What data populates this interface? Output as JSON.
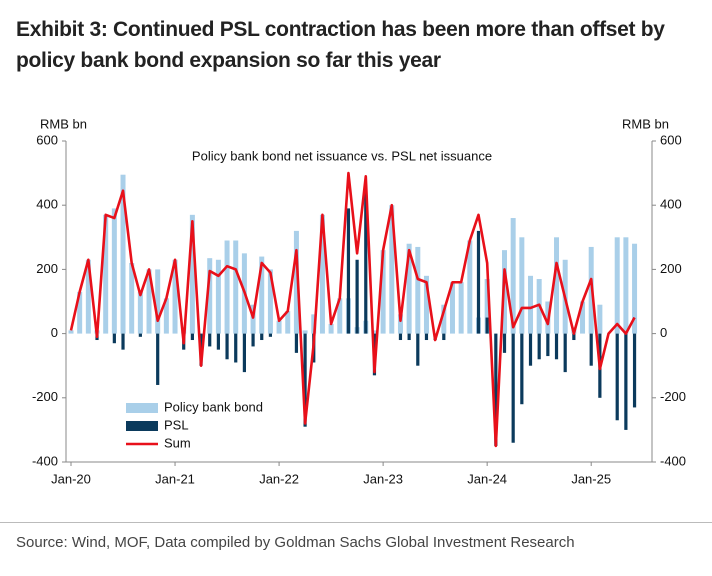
{
  "chart_data": {
    "type": "bar_line",
    "title": "Exhibit 3: Continued PSL contraction has been more than offset by policy bank bond expansion so far this year",
    "subtitle": "Policy bank bond net issuance vs. PSL net issuance",
    "y_label": "RMB bn",
    "y2_label": "RMB bn",
    "source": "Source: Wind, MOF, Data compiled by Goldman Sachs Global Investment Research",
    "categories": [
      "Jan-20",
      null,
      null,
      null,
      null,
      null,
      null,
      null,
      null,
      null,
      null,
      null,
      "Jan-21",
      null,
      null,
      null,
      null,
      null,
      null,
      null,
      null,
      null,
      null,
      null,
      "Jan-22",
      null,
      null,
      null,
      null,
      null,
      null,
      null,
      null,
      null,
      null,
      null,
      "Jan-23",
      null,
      null,
      null,
      null,
      null,
      null,
      null,
      null,
      null,
      null,
      null,
      "Jan-24",
      null,
      null,
      null,
      null,
      null,
      null,
      null,
      null,
      null,
      null,
      null,
      "Jan-25",
      null,
      null,
      null,
      null,
      null
    ],
    "series": [
      {
        "name": "Policy bank bond",
        "kind": "bar",
        "color": "#a9cfe9",
        "values": [
          10,
          130,
          230,
          10,
          370,
          390,
          495,
          220,
          130,
          200,
          200,
          110,
          230,
          20,
          370,
          0,
          235,
          230,
          290,
          290,
          250,
          90,
          240,
          200,
          40,
          70,
          320,
          10,
          60,
          370,
          30,
          110,
          110,
          20,
          40,
          10,
          260,
          400,
          60,
          280,
          270,
          180,
          0,
          90,
          160,
          160,
          290,
          50,
          170,
          0,
          260,
          360,
          300,
          180,
          170,
          100,
          300,
          230,
          20,
          100,
          270,
          90,
          0,
          300,
          300,
          280
        ]
      },
      {
        "name": "PSL",
        "kind": "bar",
        "color": "#0b3a5c",
        "values": [
          0,
          0,
          0,
          -20,
          0,
          -30,
          -50,
          0,
          -10,
          0,
          -160,
          0,
          0,
          -50,
          -20,
          -100,
          -40,
          -50,
          -80,
          -90,
          -120,
          -40,
          -20,
          -10,
          0,
          0,
          -60,
          -290,
          -90,
          0,
          0,
          0,
          390,
          230,
          450,
          -130,
          0,
          0,
          -20,
          -20,
          -100,
          -20,
          -20,
          -20,
          0,
          0,
          0,
          320,
          50,
          -350,
          -60,
          -340,
          -220,
          -100,
          -80,
          -70,
          -80,
          -120,
          -20,
          0,
          -100,
          -200,
          0,
          -270,
          -300,
          -230
        ]
      },
      {
        "name": "Sum",
        "kind": "line",
        "color": "#e8101a",
        "values": [
          10,
          130,
          230,
          -10,
          370,
          360,
          445,
          220,
          120,
          200,
          40,
          110,
          230,
          -30,
          350,
          -100,
          195,
          180,
          210,
          200,
          130,
          50,
          220,
          190,
          40,
          70,
          260,
          -280,
          -30,
          370,
          30,
          110,
          500,
          250,
          490,
          -120,
          260,
          400,
          40,
          260,
          170,
          160,
          -20,
          70,
          160,
          160,
          290,
          370,
          220,
          -350,
          200,
          20,
          80,
          80,
          90,
          30,
          220,
          110,
          0,
          100,
          170,
          -110,
          0,
          30,
          0,
          50
        ]
      }
    ],
    "ylim": [
      -400,
      600
    ],
    "yticks": [
      600,
      400,
      200,
      0,
      -200,
      -400
    ],
    "legend": "lower-left"
  }
}
